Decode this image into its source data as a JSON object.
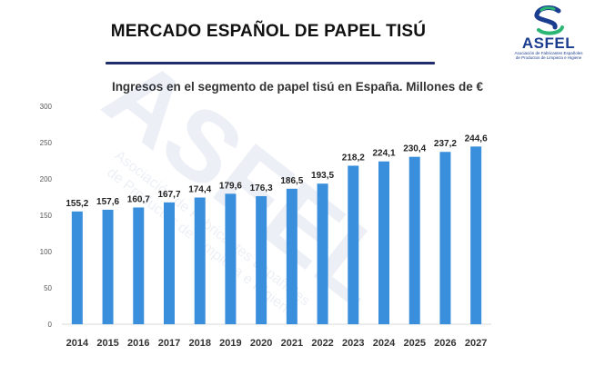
{
  "header": {
    "title": "MERCADO ESPAÑOL DE PAPEL TISÚ",
    "logo_text": "ASFEL",
    "logo_subtitle_line1": "Asociación de Fabricantes Españoles",
    "logo_subtitle_line2": "de Productos de Limpieza e Higiene"
  },
  "watermark": {
    "logo_text": "ASFEL",
    "subtitle_line1": "Asociación de Fabricantes Españoles",
    "subtitle_line2": "de Productos de Limpieza e Higiene"
  },
  "colors": {
    "bar": "#3a8fdc",
    "rule": "#1f2d6b",
    "logo_blue": "#1a3d8f",
    "logo_green": "#2bb673",
    "grid": "#d9d9d9"
  },
  "chart_data": {
    "type": "bar",
    "title": "Ingresos en el segmento de papel tisú en España. Millones de €",
    "xlabel": "",
    "ylabel": "",
    "categories": [
      "2014",
      "2015",
      "2016",
      "2017",
      "2018",
      "2019",
      "2020",
      "2021",
      "2022",
      "2023",
      "2024",
      "2025",
      "2026",
      "2027"
    ],
    "values": [
      155.2,
      157.6,
      160.7,
      167.7,
      174.4,
      179.6,
      176.3,
      186.5,
      193.5,
      218.2,
      224.1,
      230.4,
      237.2,
      244.6
    ],
    "value_labels": [
      "155,2",
      "157,6",
      "160,7",
      "167,7",
      "174,4",
      "179,6",
      "176,3",
      "186,5",
      "193,5",
      "218,2",
      "224,1",
      "230,4",
      "237,2",
      "244,6"
    ],
    "ylim": [
      0,
      300
    ],
    "yticks": [
      "0",
      "50",
      "100",
      "150",
      "200",
      "250",
      "300"
    ],
    "grid": false,
    "legend": "none"
  }
}
